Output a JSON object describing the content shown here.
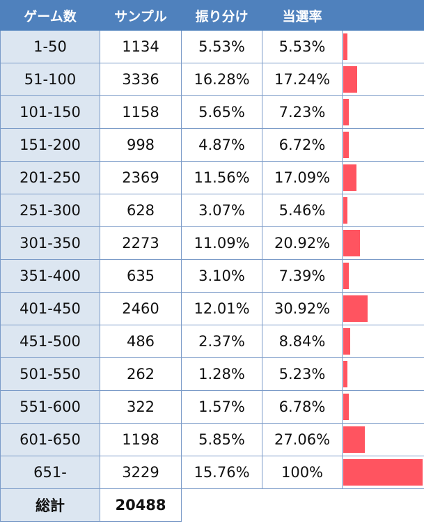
{
  "headers": [
    "ゲーム数",
    "サンプル",
    "振り分け",
    "当選率",
    ""
  ],
  "rows": [
    {
      "games": "1-50",
      "samples": "1134",
      "share": "5.53%",
      "rate": "5.53%",
      "rate_value": 5.53
    },
    {
      "games": "51-100",
      "samples": "3336",
      "share": "16.28%",
      "rate": "17.24%",
      "rate_value": 17.24
    },
    {
      "games": "101-150",
      "samples": "1158",
      "share": "5.65%",
      "rate": "7.23%",
      "rate_value": 7.23
    },
    {
      "games": "151-200",
      "samples": "998",
      "share": "4.87%",
      "rate": "6.72%",
      "rate_value": 6.72
    },
    {
      "games": "201-250",
      "samples": "2369",
      "share": "11.56%",
      "rate": "17.09%",
      "rate_value": 17.09
    },
    {
      "games": "251-300",
      "samples": "628",
      "share": "3.07%",
      "rate": "5.46%",
      "rate_value": 5.46
    },
    {
      "games": "301-350",
      "samples": "2273",
      "share": "11.09%",
      "rate": "20.92%",
      "rate_value": 20.92
    },
    {
      "games": "351-400",
      "samples": "635",
      "share": "3.10%",
      "rate": "7.39%",
      "rate_value": 7.39
    },
    {
      "games": "401-450",
      "samples": "2460",
      "share": "12.01%",
      "rate": "30.92%",
      "rate_value": 30.92
    },
    {
      "games": "451-500",
      "samples": "486",
      "share": "2.37%",
      "rate": "8.84%",
      "rate_value": 8.84
    },
    {
      "games": "501-550",
      "samples": "262",
      "share": "1.28%",
      "rate": "5.23%",
      "rate_value": 5.23
    },
    {
      "games": "551-600",
      "samples": "322",
      "share": "1.57%",
      "rate": "6.78%",
      "rate_value": 6.78
    },
    {
      "games": "601-650",
      "samples": "1198",
      "share": "5.85%",
      "rate": "27.06%",
      "rate_value": 27.06
    },
    {
      "games": "651-",
      "samples": "3229",
      "share": "15.76%",
      "rate": "100%",
      "rate_value": 100
    }
  ],
  "total": {
    "label": "総計",
    "value": "20488"
  },
  "colors": {
    "header": "#4f81bd",
    "games_column": "#dce6f1",
    "bar": "#ff5460",
    "border": "#7b9bc8"
  }
}
